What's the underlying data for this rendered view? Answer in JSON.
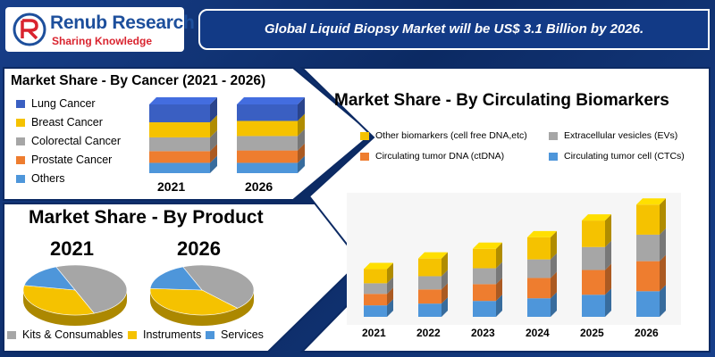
{
  "header": {
    "brand_name": "Renub Research",
    "brand_tagline": "Sharing Knowledge",
    "headline": "Global Liquid Biopsy Market will be US$ 3.1 Billion by 2026."
  },
  "colors": {
    "blue_dark": "#3a5fc2",
    "yellow": "#f5c200",
    "gray": "#a6a6a6",
    "orange": "#ee7d2f",
    "light_blue": "#4e96da",
    "brand_blue": "#1d4f9c",
    "brand_red": "#d9232e"
  },
  "chart_data": [
    {
      "type": "bar",
      "title": "Market Share - By Cancer (2021 - 2026)",
      "stacked": true,
      "categories": [
        "2021",
        "2026"
      ],
      "series": [
        {
          "name": "Lung Cancer",
          "color": "#3a5fc2",
          "values": [
            26,
            24
          ]
        },
        {
          "name": "Breast Cancer",
          "color": "#f5c200",
          "values": [
            22,
            22
          ]
        },
        {
          "name": "Colorectal Cancer",
          "color": "#a6a6a6",
          "values": [
            20,
            21
          ]
        },
        {
          "name": "Prostate Cancer",
          "color": "#ee7d2f",
          "values": [
            17,
            18
          ]
        },
        {
          "name": "Others",
          "color": "#4e96da",
          "values": [
            15,
            15
          ]
        }
      ]
    },
    {
      "type": "pie",
      "title": "Market Share - By Product",
      "pies": [
        {
          "label": "2021",
          "values": [
            50,
            34,
            16
          ]
        },
        {
          "label": "2026",
          "values": [
            44,
            38,
            18
          ]
        }
      ],
      "labels": [
        "Kits & Consumables",
        "Instruments",
        "Services"
      ],
      "colors": [
        "#a6a6a6",
        "#f5c200",
        "#4e96da"
      ]
    },
    {
      "type": "bar",
      "title": "Market Share - By Circulating Biomarkers",
      "stacked": true,
      "categories": [
        "2021",
        "2022",
        "2023",
        "2024",
        "2025",
        "2026"
      ],
      "series": [
        {
          "name": "Circulating tumor cell (CTCs)",
          "color": "#4e96da",
          "values": [
            13,
            15,
            18,
            21,
            25,
            29
          ]
        },
        {
          "name": "Circulating tumor DNA (ctDNA)",
          "color": "#ee7d2f",
          "values": [
            13,
            16,
            19,
            23,
            28,
            34
          ]
        },
        {
          "name": "Extracellular vesicles (EVs)",
          "color": "#a6a6a6",
          "values": [
            12,
            15,
            18,
            21,
            26,
            30
          ]
        },
        {
          "name": "Other biomarkers (cell free DNA,etc)",
          "color": "#f5c200",
          "values": [
            16,
            20,
            22,
            25,
            30,
            34
          ]
        }
      ]
    }
  ]
}
